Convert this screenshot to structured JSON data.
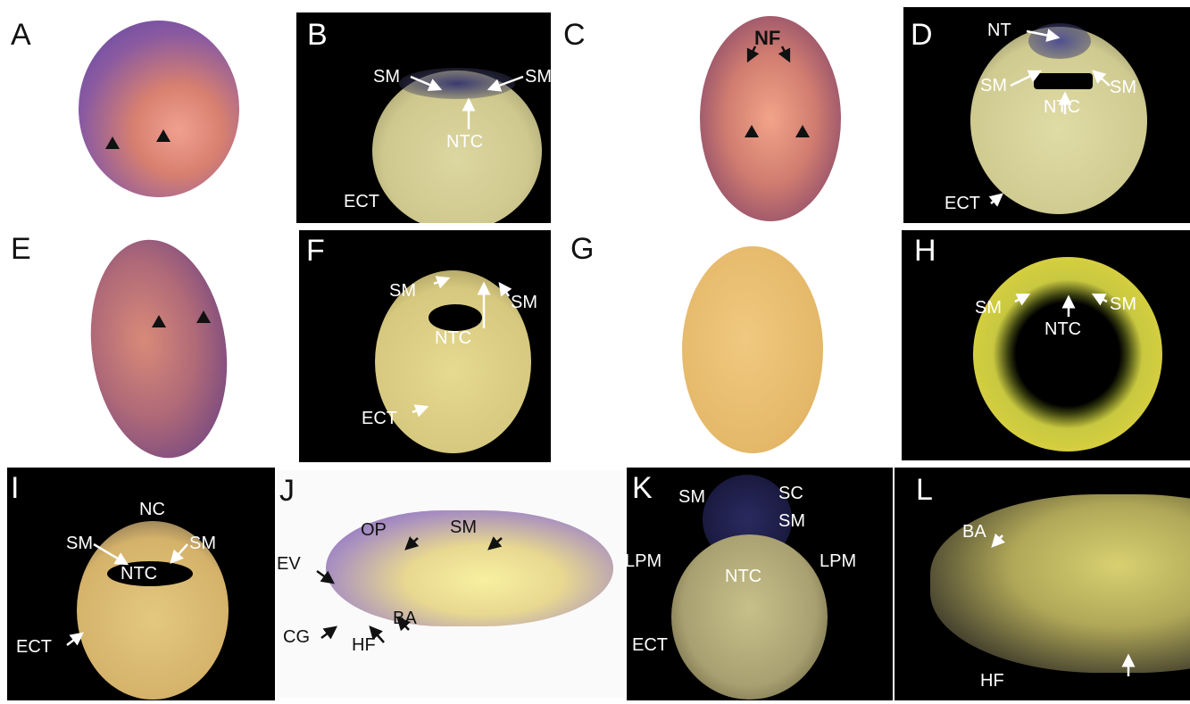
{
  "panels": [
    {
      "letter": "A",
      "labels": []
    },
    {
      "letter": "B",
      "labels": [
        "SM",
        "SM",
        "NTC",
        "ECT"
      ]
    },
    {
      "letter": "C",
      "labels": [
        "NF"
      ]
    },
    {
      "letter": "D",
      "labels": [
        "NT",
        "SM",
        "SM",
        "NTC",
        "ECT"
      ]
    },
    {
      "letter": "E",
      "labels": []
    },
    {
      "letter": "F",
      "labels": [
        "SM",
        "SM",
        "NTC",
        "ECT"
      ]
    },
    {
      "letter": "G",
      "labels": []
    },
    {
      "letter": "H",
      "labels": [
        "SM",
        "SM",
        "NTC"
      ]
    },
    {
      "letter": "I",
      "labels": [
        "NC",
        "SM",
        "SM",
        "NTC",
        "ECT"
      ]
    },
    {
      "letter": "J",
      "labels": [
        "OP",
        "SM",
        "EV",
        "BA",
        "CG",
        "HF"
      ]
    },
    {
      "letter": "K",
      "labels": [
        "SM",
        "SC",
        "SM",
        "LPM",
        "LPM",
        "NTC",
        "ECT"
      ]
    },
    {
      "letter": "L",
      "labels": [
        "BA",
        "HF"
      ]
    }
  ],
  "colors": {
    "stain": "#6a4fb0",
    "embryo_pink": "#e88f7e",
    "embryo_yellow": "#d9c88a",
    "background_dark": "#000000"
  }
}
